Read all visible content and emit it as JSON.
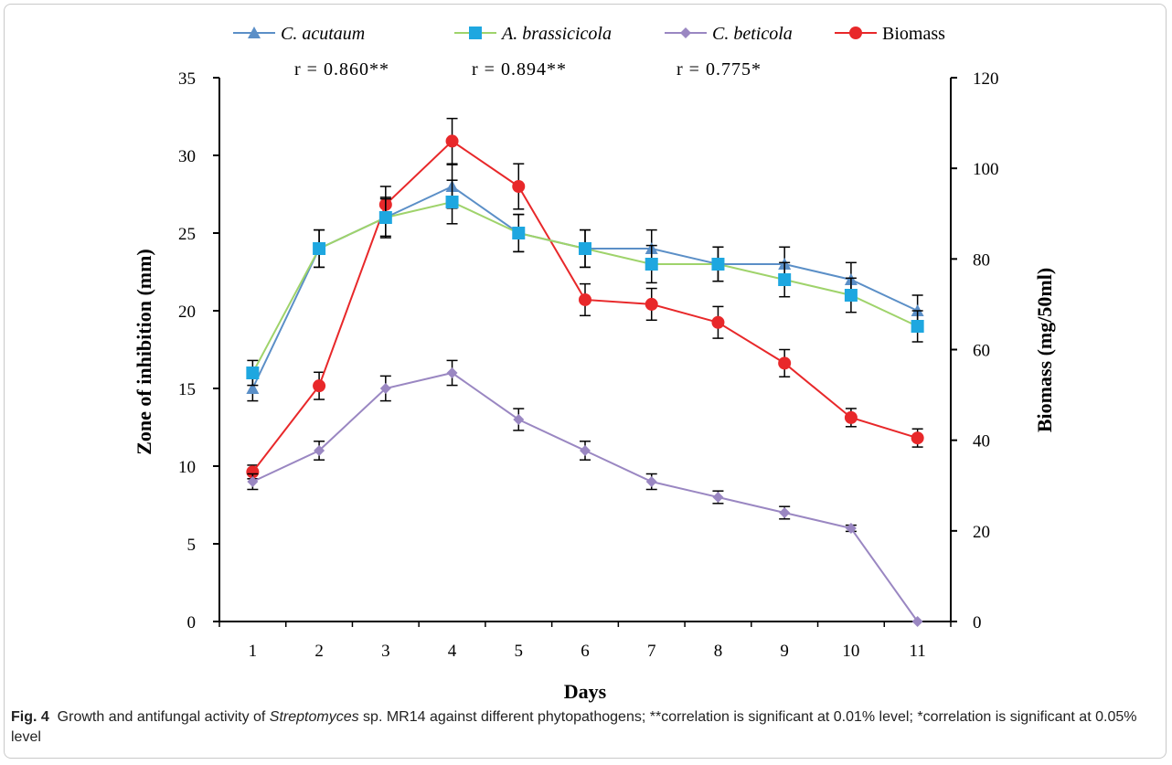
{
  "caption": {
    "fig_label": "Fig. 4",
    "text_before_italic": "Growth and antifungal activity of ",
    "italic": "Streptomyces",
    "text_after_italic": " sp. MR14 against different phytopathogens; **correlation is significant at 0.01% level; *correlation is significant at 0.05% level"
  },
  "chart_data": {
    "type": "line",
    "xlabel": "Days",
    "ylabel": "Zone of inhibition  (mm)",
    "y2label": "Biomass (mg/50ml)",
    "x": [
      1,
      2,
      3,
      4,
      5,
      6,
      7,
      8,
      9,
      10,
      11
    ],
    "xticks": [
      "1",
      "2",
      "3",
      "4",
      "5",
      "6",
      "7",
      "8",
      "9",
      "10",
      "11"
    ],
    "ylim": [
      0,
      35
    ],
    "yticks": [
      0,
      5,
      10,
      15,
      20,
      25,
      30,
      35
    ],
    "y2lim": [
      0,
      120
    ],
    "y2ticks": [
      0,
      20,
      40,
      60,
      80,
      100,
      120
    ],
    "grid": false,
    "legend_position": "top",
    "annotations": [
      "r = 0.860**",
      "r = 0.894**",
      "r = 0.775*"
    ],
    "series": [
      {
        "name": "C. acutaum",
        "axis": "left",
        "marker": "triangle",
        "color": "#5b8fc7",
        "values": [
          15,
          24,
          26,
          28,
          25,
          24,
          24,
          23,
          23,
          22,
          20
        ],
        "errors": [
          0.8,
          1.2,
          1.2,
          1.4,
          1.2,
          1.2,
          1.2,
          1.1,
          1.1,
          1.1,
          1.0
        ]
      },
      {
        "name": "A. brassicicola",
        "axis": "left",
        "marker": "square",
        "color": "#9fd36b",
        "marker_color": "#1ea7e0",
        "values": [
          16,
          24,
          26,
          27,
          25,
          24,
          23,
          23,
          22,
          21,
          19
        ],
        "errors": [
          0.8,
          1.2,
          1.3,
          1.4,
          1.2,
          1.2,
          1.2,
          1.1,
          1.1,
          1.1,
          1.0
        ]
      },
      {
        "name": "C. beticola",
        "axis": "left",
        "marker": "diamond",
        "color": "#9a87c2",
        "values": [
          9,
          11,
          15,
          16,
          13,
          11,
          9,
          8,
          7,
          6,
          0
        ],
        "errors": [
          0.5,
          0.6,
          0.8,
          0.8,
          0.7,
          0.6,
          0.5,
          0.4,
          0.4,
          0.2,
          0
        ]
      },
      {
        "name": "Biomass",
        "axis": "right",
        "marker": "circle",
        "color": "#e8282a",
        "values": [
          33,
          52,
          92,
          106,
          96,
          71,
          70,
          66,
          57,
          45,
          40.5
        ],
        "errors": [
          1.5,
          3,
          4,
          5,
          5,
          3.5,
          3.5,
          3.5,
          3,
          2,
          2
        ]
      }
    ]
  }
}
